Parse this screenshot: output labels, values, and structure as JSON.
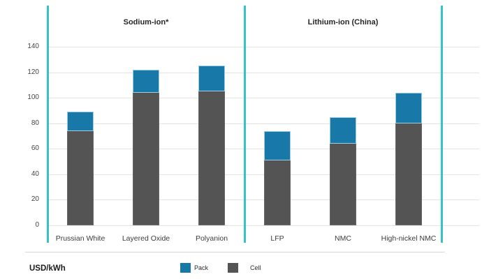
{
  "chart_data": {
    "type": "bar",
    "stacked": true,
    "unit_label": "USD/kWh",
    "ylim": [
      0,
      140
    ],
    "yticks": [
      0,
      20,
      40,
      60,
      80,
      100,
      120,
      140
    ],
    "grid": "horizontal",
    "legend_position": "bottom",
    "legend": [
      {
        "label": "Pack",
        "color": "#1878a8"
      },
      {
        "label": "Cell",
        "color": "#545454"
      }
    ],
    "groups": [
      {
        "title": "Sodium-ion*",
        "categories": [
          "Prussian White",
          "Layered Oxide",
          "Polyanion"
        ],
        "series": [
          {
            "name": "Cell",
            "values": [
              74,
              104,
              105
            ]
          },
          {
            "name": "Pack",
            "values": [
              15,
              18,
              20
            ]
          }
        ],
        "totals": [
          89,
          122,
          125
        ]
      },
      {
        "title": "Lithium-ion (China)",
        "categories": [
          "LFP",
          "NMC",
          "High-nickel NMC"
        ],
        "series": [
          {
            "name": "Cell",
            "values": [
              51,
              64,
              80
            ]
          },
          {
            "name": "Pack",
            "values": [
              23,
              21,
              24
            ]
          }
        ],
        "totals": [
          74,
          85,
          104
        ]
      }
    ],
    "colors": {
      "pack": "#1878a8",
      "cell": "#545454",
      "panel_line_teal": "#35c2c9",
      "gridline": "#e3e3e3",
      "separator": "#d8d8d8"
    }
  }
}
